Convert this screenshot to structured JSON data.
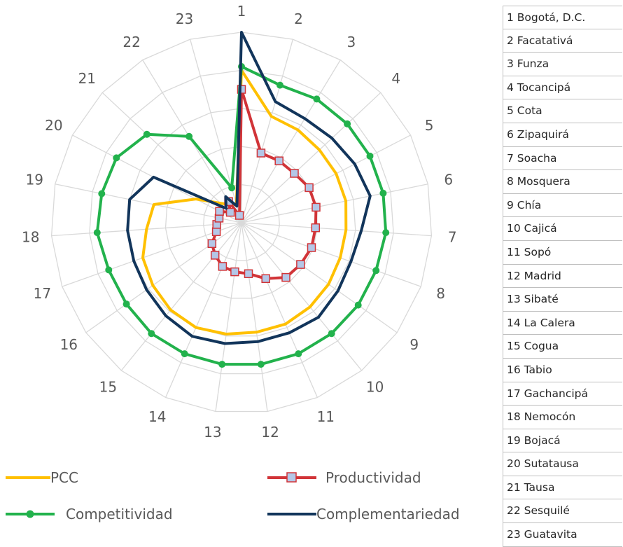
{
  "chart_data": {
    "type": "radar",
    "categories": [
      "1",
      "2",
      "3",
      "4",
      "5",
      "6",
      "7",
      "8",
      "9",
      "10",
      "11",
      "12",
      "13",
      "14",
      "15",
      "16",
      "17",
      "18",
      "19",
      "20",
      "21",
      "22",
      "23"
    ],
    "rmax": 10,
    "rings": 5,
    "series": [
      {
        "name": "PCC",
        "color": "#ffc000",
        "marker": "none",
        "values": [
          8.0,
          5.8,
          5.7,
          5.6,
          5.6,
          5.6,
          5.5,
          5.5,
          5.6,
          5.7,
          5.8,
          5.8,
          5.9,
          6.0,
          5.9,
          5.7,
          5.5,
          5.0,
          4.7,
          2.7,
          1.5,
          1.1,
          1.0
        ]
      },
      {
        "name": "Productividad",
        "color": "#d13438",
        "marker": "square",
        "values": [
          7.0,
          3.8,
          3.8,
          3.8,
          4.0,
          4.0,
          3.9,
          3.9,
          3.8,
          3.7,
          3.2,
          2.7,
          2.6,
          2.5,
          2.2,
          1.9,
          1.4,
          1.3,
          1.2,
          1.3,
          0.8,
          1.3,
          0.4
        ]
      },
      {
        "name": "Competitividad",
        "color": "#22b24c",
        "marker": "circle",
        "values": [
          8.2,
          7.5,
          7.6,
          7.6,
          7.6,
          7.6,
          7.6,
          7.5,
          7.5,
          7.5,
          7.5,
          7.5,
          7.5,
          7.5,
          7.5,
          7.4,
          7.4,
          7.6,
          7.5,
          7.4,
          6.8,
          5.3,
          1.9
        ]
      },
      {
        "name": "Complementariedad",
        "color": "#12355b",
        "marker": "none",
        "values": [
          10.0,
          6.6,
          6.4,
          6.5,
          6.7,
          6.9,
          6.3,
          6.1,
          6.2,
          6.4,
          6.3,
          6.3,
          6.4,
          6.5,
          6.3,
          6.1,
          6.0,
          6.0,
          6.0,
          5.2,
          1.1,
          1.6,
          0.9
        ]
      }
    ],
    "legend_position": "bottom",
    "grid": true
  },
  "municipios": [
    "1 Bogotá, D.C.",
    "2 Facatativá",
    "3 Funza",
    "4 Tocancipá",
    "5 Cota",
    "6 Zipaquirá",
    "7 Soacha",
    "8 Mosquera",
    "9 Chía",
    "10 Cajicá",
    "11 Sopó",
    "12 Madrid",
    "13 Sibaté",
    "14 La Calera",
    "15 Cogua",
    "16 Tabio",
    "17 Gachancipá",
    "18 Nemocón",
    "19 Bojacá",
    "20 Sutatausa",
    "21 Tausa",
    "22 Sesquilé",
    "23 Guatavita"
  ],
  "legend": {
    "pcc": "PCC",
    "productividad": "Productividad",
    "competitividad": "Competitividad",
    "complementariedad": "Complementariedad"
  },
  "colors": {
    "pcc": "#ffc000",
    "productividad": "#d13438",
    "productividad_marker_fill": "#b4c7e7",
    "competitividad": "#22b24c",
    "complementariedad": "#12355b",
    "grid": "#d9d9d9"
  }
}
